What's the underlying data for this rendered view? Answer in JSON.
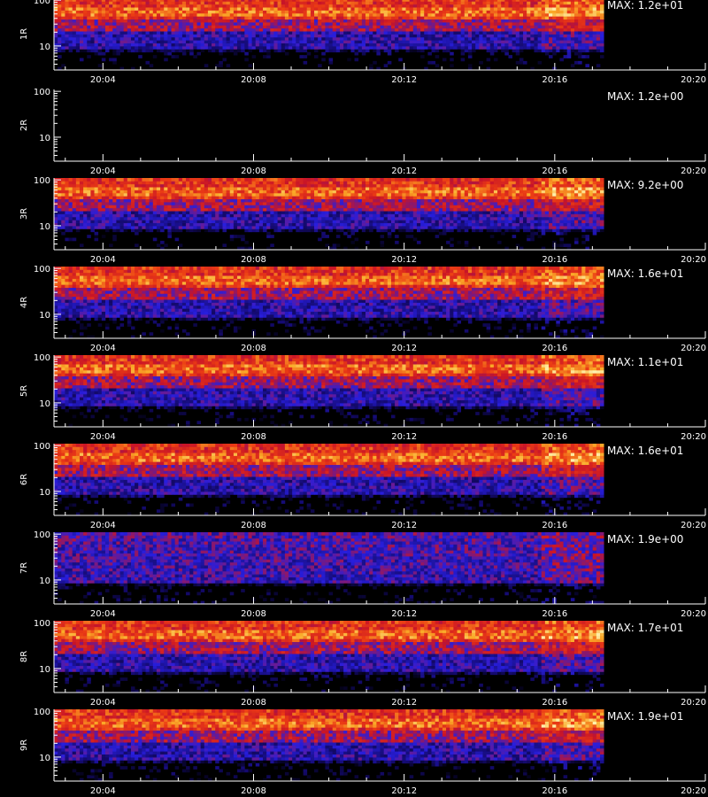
{
  "chart_data": {
    "type": "heatmap",
    "x_tick_labels": [
      "20:04",
      "20:08",
      "20:12",
      "20:16",
      "20:20"
    ],
    "x_tick_minutes": [
      4,
      8,
      12,
      16,
      20
    ],
    "x_range_minutes": [
      2.7,
      20.0
    ],
    "data_end_minutes": 17.3,
    "y_scale": "log",
    "y_range": [
      3,
      110
    ],
    "y_tick_labels": [
      "100",
      "10"
    ],
    "y_tick_values": [
      100,
      10
    ],
    "footer_text": "",
    "panels": [
      {
        "label": "1R",
        "max_label": "MAX: 1.2e+01",
        "has_data": true,
        "profile": "warm"
      },
      {
        "label": "2R",
        "max_label": "MAX: 1.2e+00",
        "has_data": false,
        "profile": "empty"
      },
      {
        "label": "3R",
        "max_label": "MAX: 9.2e+00",
        "has_data": true,
        "profile": "warm"
      },
      {
        "label": "4R",
        "max_label": "MAX: 1.6e+01",
        "has_data": true,
        "profile": "warm"
      },
      {
        "label": "5R",
        "max_label": "MAX: 1.1e+01",
        "has_data": true,
        "profile": "warm"
      },
      {
        "label": "6R",
        "max_label": "MAX: 1.6e+01",
        "has_data": true,
        "profile": "warm"
      },
      {
        "label": "7R",
        "max_label": "MAX: 1.9e+00",
        "has_data": true,
        "profile": "cool"
      },
      {
        "label": "8R",
        "max_label": "MAX: 1.7e+01",
        "has_data": true,
        "profile": "warm"
      },
      {
        "label": "9R",
        "max_label": "MAX: 1.9e+01",
        "has_data": true,
        "profile": "warm"
      }
    ]
  }
}
